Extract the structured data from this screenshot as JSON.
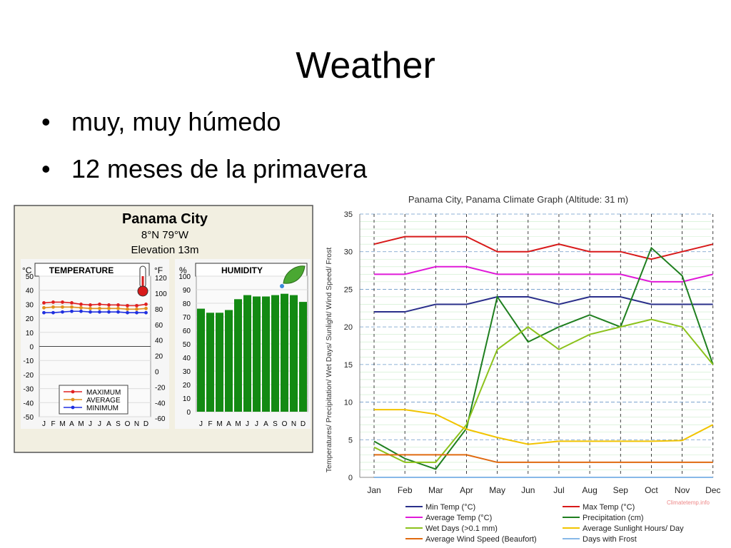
{
  "slide": {
    "title": "Weather",
    "bullets": [
      "muy, muy húmedo",
      "12 meses de la primavera"
    ]
  },
  "colors": {
    "min_temp": "#2a2f8a",
    "max_temp": "#d81a1a",
    "avg_temp": "#e01ad8",
    "precipitation": "#1f7f1f",
    "wet_days": "#8cc21c",
    "sunlight": "#f2c400",
    "wind": "#e06a10",
    "frost": "#88b8e8",
    "humidity_bar": "#138a13",
    "panel_bg": "#f2efe1"
  },
  "chart_data": [
    {
      "type": "line",
      "title": "Panama City",
      "subtitle": "8°N 79°W",
      "elevation": "Elevation 13m",
      "panel_label": "TEMPERATURE",
      "ylabel_left": "°C",
      "ylabel_right": "°F",
      "yticks_c": [
        "50",
        "40",
        "30",
        "20",
        "10",
        "0",
        "-10",
        "-20",
        "-30",
        "-40",
        "-50"
      ],
      "yticks_f": [
        "120",
        "100",
        "80",
        "60",
        "40",
        "20",
        "0",
        "-20",
        "-40",
        "-60"
      ],
      "categories": [
        "J",
        "F",
        "M",
        "A",
        "M",
        "J",
        "J",
        "A",
        "S",
        "O",
        "N",
        "D"
      ],
      "ylim": [
        -50,
        50
      ],
      "series": [
        {
          "name": "MAXIMUM",
          "color": "#e02020",
          "values": [
            31,
            31.5,
            31.5,
            31,
            30,
            29.5,
            30,
            29.5,
            29.5,
            29,
            29,
            30
          ]
        },
        {
          "name": "AVERAGE",
          "color": "#e0901c",
          "values": [
            27.5,
            28,
            28,
            28,
            27.5,
            27,
            27,
            27,
            27,
            26.5,
            26.5,
            27
          ]
        },
        {
          "name": "MINIMUM",
          "color": "#2030e0",
          "values": [
            24,
            24,
            24.5,
            25,
            25,
            24.5,
            24.5,
            24.5,
            24.5,
            24,
            24,
            24
          ]
        }
      ],
      "icon": "thermometer-icon"
    },
    {
      "type": "bar",
      "panel_label": "HUMIDITY",
      "ylabel": "%",
      "yticks": [
        "100",
        "90",
        "80",
        "70",
        "60",
        "50",
        "40",
        "30",
        "20",
        "10",
        "0"
      ],
      "categories": [
        "J",
        "F",
        "M",
        "A",
        "M",
        "J",
        "J",
        "A",
        "S",
        "O",
        "N",
        "D"
      ],
      "ylim": [
        0,
        100
      ],
      "values": [
        76,
        73,
        73,
        75,
        83,
        86,
        85,
        85,
        86,
        87,
        86,
        81
      ],
      "icon": "leaf-icon"
    },
    {
      "type": "line",
      "title": "Panama City, Panama Climate Graph (Altitude: 31 m)",
      "ylabel": "Temperatures/ Precipitation/ Wet Days/ Sunlight/ Wind Speed/ Frost",
      "categories": [
        "Jan",
        "Feb",
        "Mar",
        "Apr",
        "May",
        "Jun",
        "Jul",
        "Aug",
        "Sep",
        "Oct",
        "Nov",
        "Dec"
      ],
      "ylim": [
        0,
        35
      ],
      "yticks": [
        "35",
        "30",
        "25",
        "20",
        "15",
        "10",
        "5",
        "0"
      ],
      "watermark": "Climatetemp.info",
      "series": [
        {
          "name": "Min Temp (°C)",
          "color": "#2a2f8a",
          "values": [
            22,
            22,
            23,
            23,
            24,
            24,
            23,
            24,
            24,
            23,
            23,
            23
          ]
        },
        {
          "name": "Max Temp (°C)",
          "color": "#d81a1a",
          "values": [
            31,
            32,
            32,
            32,
            30,
            30,
            31,
            30,
            30,
            29,
            30,
            31
          ]
        },
        {
          "name": "Average Temp (°C)",
          "color": "#e01ad8",
          "values": [
            27,
            27,
            28,
            28,
            27,
            27,
            27,
            27,
            27,
            26,
            26,
            27
          ]
        },
        {
          "name": "Precipitation (cm)",
          "color": "#1f7f1f",
          "values": [
            4.8,
            2.5,
            1.1,
            6.5,
            24,
            18,
            20,
            21.6,
            20,
            30.5,
            26.8,
            15
          ]
        },
        {
          "name": "Wet Days (>0.1 mm)",
          "color": "#8cc21c",
          "values": [
            4,
            2,
            2,
            7,
            17,
            20,
            17,
            19,
            20,
            21,
            20,
            15
          ]
        },
        {
          "name": "Average Sunlight Hours/ Day",
          "color": "#f2c400",
          "values": [
            9,
            9,
            8.4,
            6.4,
            5.3,
            4.4,
            4.8,
            4.8,
            4.8,
            4.8,
            4.9,
            7
          ]
        },
        {
          "name": "Average Wind Speed (Beaufort)",
          "color": "#e06a10",
          "values": [
            3,
            3,
            3,
            3,
            2,
            2,
            2,
            2,
            2,
            2,
            2,
            2
          ]
        },
        {
          "name": "Days with Frost",
          "color": "#88b8e8",
          "values": [
            0,
            0,
            0,
            0,
            0,
            0,
            0,
            0,
            0,
            0,
            0,
            0
          ]
        }
      ]
    }
  ]
}
